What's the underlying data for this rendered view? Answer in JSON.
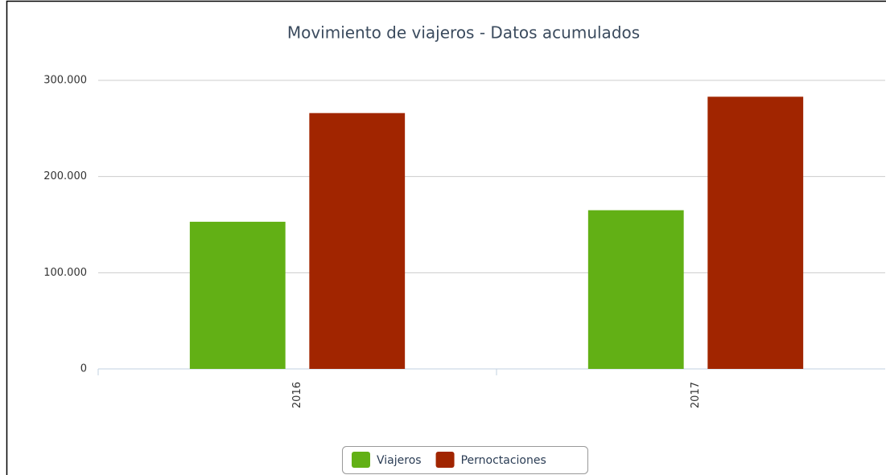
{
  "chart_data": {
    "type": "bar",
    "title": "Movimiento de viajeros - Datos acumulados",
    "categories": [
      "2016",
      "2017"
    ],
    "series": [
      {
        "name": "Viajeros",
        "color": "#62b015",
        "values": [
          153000,
          165000
        ]
      },
      {
        "name": "Pernoctaciones",
        "color": "#a12500",
        "values": [
          266000,
          283000
        ]
      }
    ],
    "ylim": [
      0,
      300000
    ],
    "yticks": [
      0,
      {
        "value": 100000,
        "label": "100.000"
      },
      {
        "value": 200000,
        "label": "200.000"
      },
      {
        "value": 300000,
        "label": "300.000"
      }
    ],
    "grid": true,
    "legend": "bottom"
  }
}
